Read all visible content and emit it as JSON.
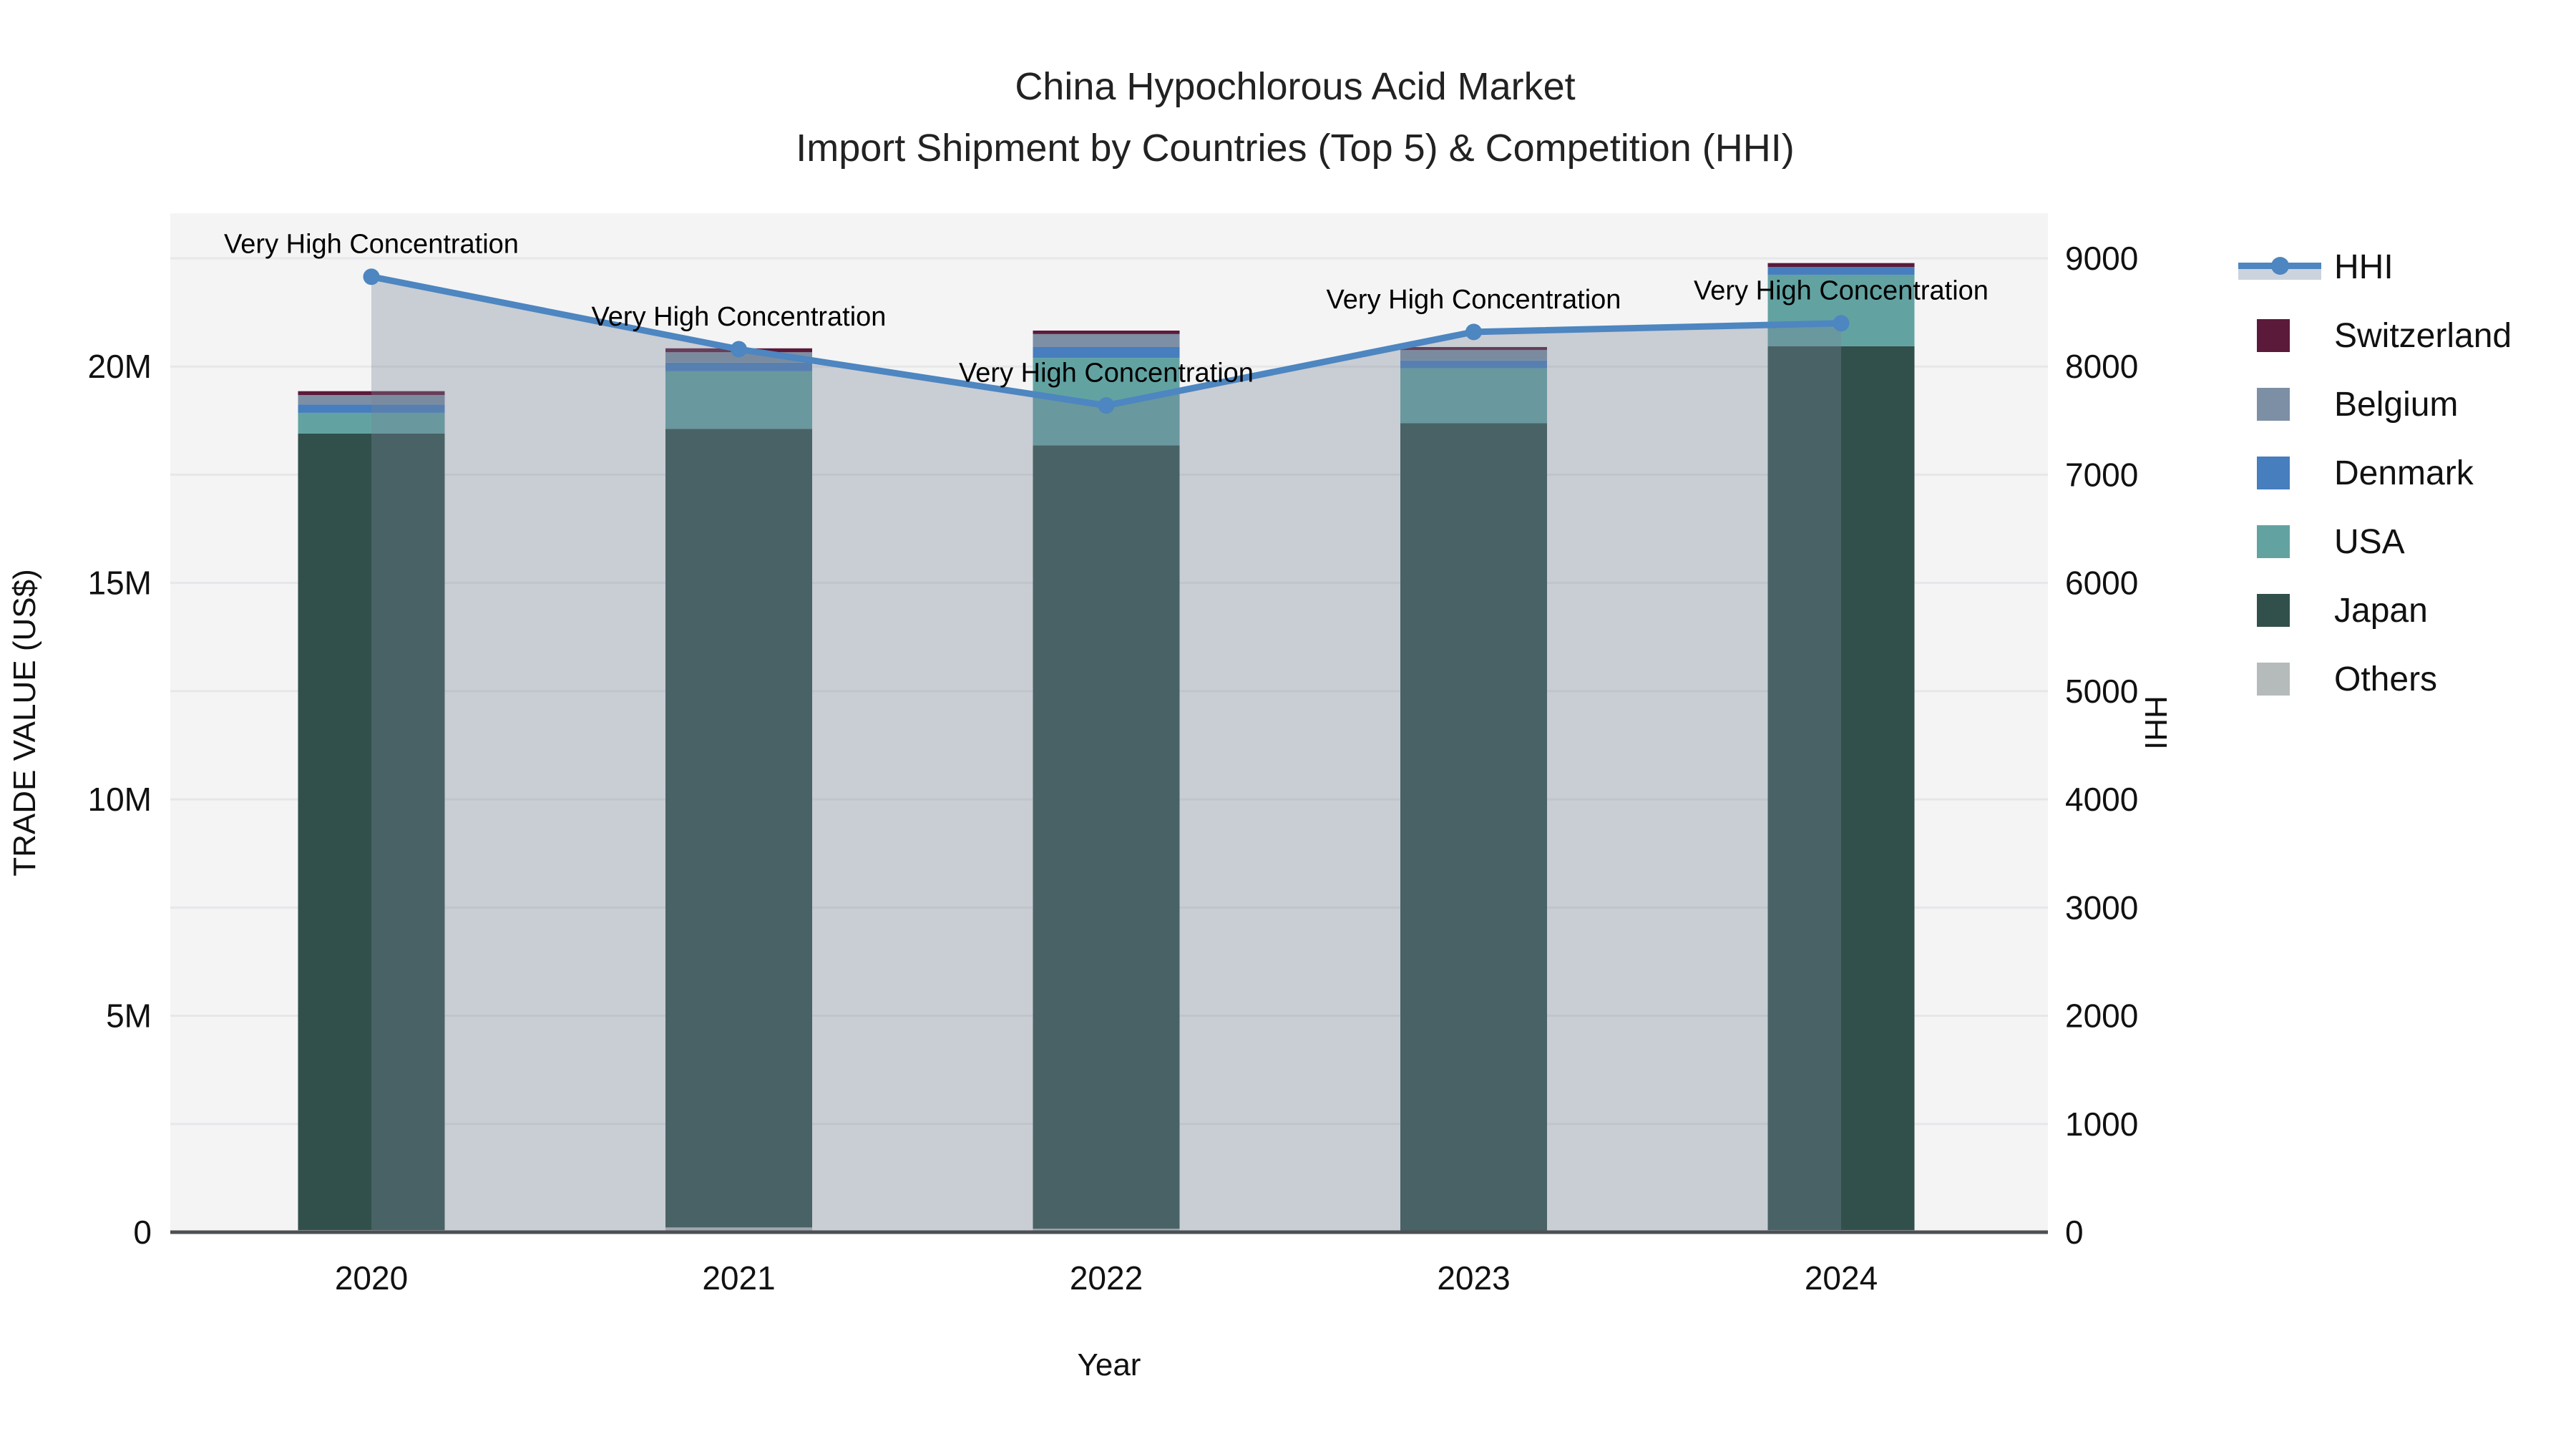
{
  "title": {
    "line1": "China Hypochlorous Acid Market",
    "line2": "Import Shipment by Countries (Top 5) & Competition (HHI)"
  },
  "chart_data": {
    "type": "combo_stacked_bar_line",
    "title": "China Hypochlorous Acid Market",
    "subtitle": "Import Shipment by Countries (Top 5) & Competition (HHI)",
    "xlabel": "Year",
    "ylabel": "TRADE VALUE (US$)",
    "y2label": "HHI",
    "categories": [
      "2020",
      "2021",
      "2022",
      "2023",
      "2024"
    ],
    "values_unit": "millions USD",
    "stack_series": [
      {
        "name": "Others",
        "color": "#b5baba",
        "values": [
          0.05,
          0.11,
          0.08,
          0.03,
          0.05
        ]
      },
      {
        "name": "Japan",
        "color": "#31504b",
        "values": [
          18.4,
          18.45,
          18.1,
          18.66,
          20.42
        ]
      },
      {
        "name": "USA",
        "color": "#62a3a2",
        "values": [
          0.48,
          1.33,
          2.02,
          1.27,
          1.65
        ]
      },
      {
        "name": "Denmark",
        "color": "#467ebe",
        "values": [
          0.19,
          0.2,
          0.25,
          0.18,
          0.18
        ]
      },
      {
        "name": "Belgium",
        "color": "#7d8fa4",
        "values": [
          0.22,
          0.24,
          0.3,
          0.24,
          0.0
        ]
      },
      {
        "name": "Switzerland",
        "color": "#5c1a3a",
        "values": [
          0.09,
          0.09,
          0.08,
          0.07,
          0.09
        ]
      }
    ],
    "line_series": {
      "name": "HHI",
      "color": "#4d86c0",
      "area_fill": "rgba(119,131,153,0.35)",
      "values": [
        8830,
        8160,
        7640,
        8320,
        8400
      ]
    },
    "annotations": [
      "Very High Concentration",
      "Very High Concentration",
      "Very High Concentration",
      "Very High Concentration",
      "Very High Concentration"
    ],
    "y_axis": {
      "ticks": [
        0,
        5,
        10,
        15,
        20
      ],
      "tick_labels": [
        "0",
        "5M",
        "10M",
        "15M",
        "20M"
      ],
      "max": 23.5,
      "gridline_step_millions": 2.5
    },
    "y2_axis": {
      "ticks": [
        0,
        1000,
        2000,
        3000,
        4000,
        5000,
        6000,
        7000,
        8000,
        9000
      ],
      "max": 9000
    },
    "layout_hints": {
      "grid": true,
      "legend_position": "right",
      "plot_background": "#f4f4f5",
      "gridline_color": "#e7e7e9",
      "axis_line_color": "#4c4f54"
    }
  },
  "legend": {
    "items": [
      {
        "label": "HHI",
        "type": "line",
        "color": "#4d86c0"
      },
      {
        "label": "Switzerland",
        "type": "square",
        "color": "#5c1a3a"
      },
      {
        "label": "Belgium",
        "type": "square",
        "color": "#7d8fa4"
      },
      {
        "label": "Denmark",
        "type": "square",
        "color": "#467ebe"
      },
      {
        "label": "USA",
        "type": "square",
        "color": "#62a3a2"
      },
      {
        "label": "Japan",
        "type": "square",
        "color": "#31504b"
      },
      {
        "label": "Others",
        "type": "square",
        "color": "#b5baba"
      }
    ]
  }
}
